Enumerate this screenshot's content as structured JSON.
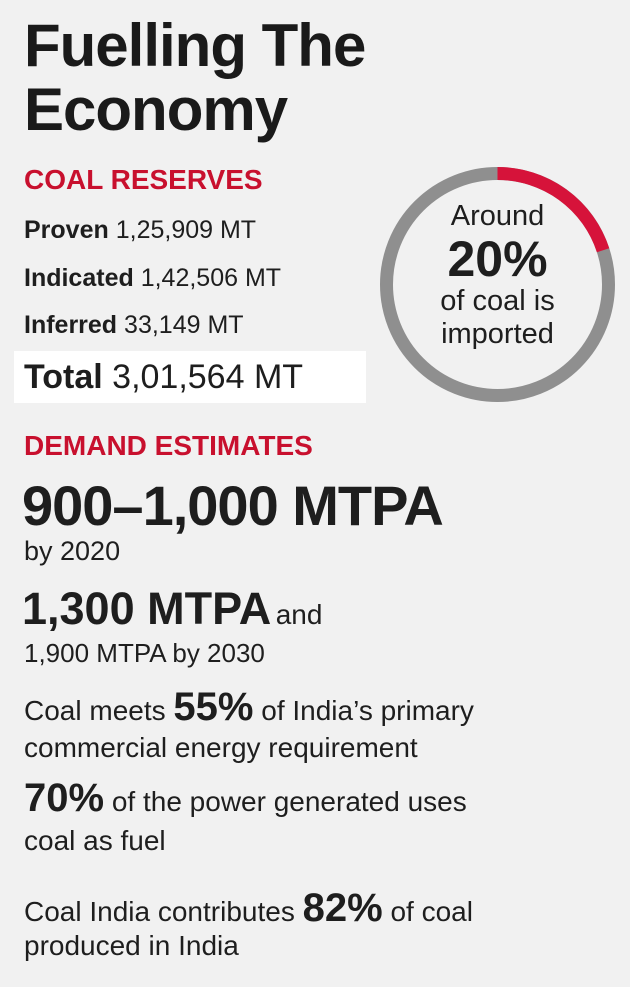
{
  "title": "Fuelling The Economy",
  "reserves": {
    "heading": "COAL RESERVES",
    "rows": [
      {
        "label": "Proven",
        "value": "1,25,909 MT"
      },
      {
        "label": "Indicated",
        "value": "1,42,506 MT"
      },
      {
        "label": "Inferred",
        "value": "33,149 MT"
      }
    ],
    "total_label": "Total",
    "total_value": "3,01,564 MT"
  },
  "import_stat": {
    "line1": "Around",
    "percent": "20%",
    "line2": "of coal is",
    "line3": "imported",
    "fraction": 0.2,
    "accent_color": "#d6133a",
    "ring_color": "#8f8f8f"
  },
  "demand": {
    "heading": "DEMAND ESTIMATES",
    "stat1_value": "900–1,000 MTPA",
    "stat1_note": "by 2020",
    "stat2_value": "1,300 MTPA",
    "stat2_and": "and",
    "stat2_note": "1,900 MTPA by 2030"
  },
  "facts": {
    "f1_pre": "Coal meets",
    "f1_pct": "55%",
    "f1_post": "of India’s primary",
    "f1_line2": "commercial energy requirement",
    "f2_pct": "70%",
    "f2_post": "of the power generated uses",
    "f2_line2": "coal as fuel",
    "f3_pre": "Coal India contributes",
    "f3_pct": "82%",
    "f3_post": "of coal",
    "f3_line2": "produced in India"
  },
  "colors": {
    "accent": "#c8102e",
    "background": "#f1f1f1",
    "text": "#1e1e1e"
  }
}
